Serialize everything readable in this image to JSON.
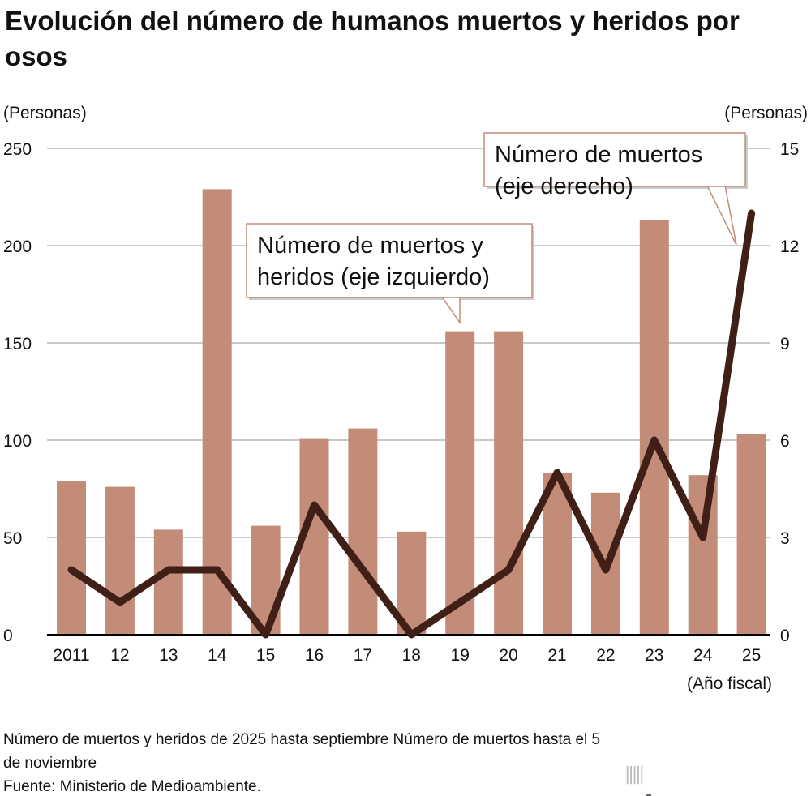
{
  "title": "Evolución del número de humanos muertos y heridos por osos",
  "left_unit": "(Personas)",
  "right_unit": "(Personas)",
  "x_unit": "(Año fiscal)",
  "notes": [
    "Número de muertos y heridos de 2025 hasta septiembre Número de muertos hasta el 5 de noviembre",
    "Fuente: Ministerio de Medioambiente."
  ],
  "logo": {
    "name": "nippon",
    "dot": ".",
    "suffix": "com"
  },
  "colors": {
    "bar": "#c28c78",
    "line": "#3f1f16",
    "grid": "#c8c8c8"
  },
  "chart_data": {
    "type": "bar+line",
    "categories": [
      "2011",
      "12",
      "13",
      "14",
      "15",
      "16",
      "17",
      "18",
      "19",
      "20",
      "21",
      "22",
      "23",
      "24",
      "25"
    ],
    "series": [
      {
        "name": "Número de muertos y heridos (eje izquierdo)",
        "type": "bar",
        "axis": "left",
        "values": [
          79,
          76,
          54,
          229,
          56,
          101,
          106,
          53,
          156,
          156,
          83,
          73,
          213,
          82,
          103
        ]
      },
      {
        "name": "Número de muertos (eje derecho)",
        "type": "line",
        "axis": "right",
        "values": [
          2,
          1,
          2,
          2,
          0,
          4,
          2,
          0,
          1,
          2,
          5,
          2,
          6,
          3,
          13
        ]
      }
    ],
    "left_axis": {
      "range": [
        0,
        250
      ],
      "ticks": [
        0,
        50,
        100,
        150,
        200,
        250
      ]
    },
    "right_axis": {
      "range": [
        0,
        15
      ],
      "ticks": [
        0,
        3,
        6,
        9,
        12,
        15
      ]
    },
    "grid": true,
    "callouts": {
      "bar": [
        "Número de muertos y",
        "heridos (eje izquierdo)"
      ],
      "line": [
        "Número de muertos",
        "(eje derecho)"
      ]
    }
  }
}
